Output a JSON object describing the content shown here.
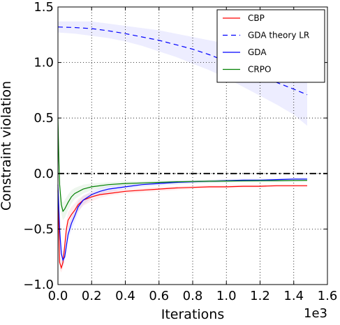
{
  "chart_data": {
    "type": "line",
    "title": "",
    "xlabel": "Iterations",
    "ylabel": "Constraint violation",
    "x_scale_label": "1e3",
    "xlim": [
      0.0,
      1.6
    ],
    "ylim": [
      -1.0,
      1.5
    ],
    "xticks": [
      "0.0",
      "0.2",
      "0.4",
      "0.6",
      "0.8",
      "1.0",
      "1.2",
      "1.4",
      "1.6"
    ],
    "yticks": [
      "1.5",
      "1.0",
      "0.5",
      "0.0",
      "−0.5",
      "−1.0"
    ],
    "grid": true,
    "legend_position": "top-right",
    "reference_line": {
      "y": 0.0,
      "style": "dash-dot",
      "color": "#000000"
    },
    "series": [
      {
        "name": "CBP",
        "color": "#ff0000",
        "dash": "solid",
        "x": [
          0.0,
          0.01,
          0.02,
          0.03,
          0.04,
          0.05,
          0.06,
          0.08,
          0.1,
          0.12,
          0.15,
          0.2,
          0.25,
          0.3,
          0.4,
          0.5,
          0.6,
          0.7,
          0.8,
          0.9,
          1.0,
          1.1,
          1.2,
          1.3,
          1.4,
          1.48
        ],
        "values": [
          -0.15,
          -0.8,
          -0.85,
          -0.8,
          -0.65,
          -0.5,
          -0.42,
          -0.37,
          -0.33,
          -0.28,
          -0.24,
          -0.21,
          -0.19,
          -0.18,
          -0.16,
          -0.15,
          -0.14,
          -0.13,
          -0.125,
          -0.12,
          -0.12,
          -0.115,
          -0.115,
          -0.11,
          -0.11,
          -0.11
        ],
        "band_lower": [
          -0.2,
          -0.87,
          -0.89,
          -0.85,
          -0.72,
          -0.58,
          -0.5,
          -0.45,
          -0.4,
          -0.34,
          -0.29,
          -0.25,
          -0.22,
          -0.2,
          -0.18,
          -0.17,
          -0.16,
          -0.15,
          -0.14,
          -0.135,
          -0.13,
          -0.125,
          -0.125,
          -0.12,
          -0.12,
          -0.12
        ],
        "band_upper": [
          -0.1,
          -0.72,
          -0.8,
          -0.74,
          -0.58,
          -0.43,
          -0.35,
          -0.3,
          -0.27,
          -0.23,
          -0.2,
          -0.17,
          -0.16,
          -0.15,
          -0.14,
          -0.13,
          -0.12,
          -0.115,
          -0.11,
          -0.105,
          -0.105,
          -0.1,
          -0.1,
          -0.1,
          -0.1,
          -0.1
        ]
      },
      {
        "name": "GDA theory LR",
        "color": "#0000ff",
        "dash": "dashed",
        "x": [
          0.0,
          0.1,
          0.2,
          0.3,
          0.4,
          0.5,
          0.6,
          0.7,
          0.8,
          0.9,
          1.0,
          1.1,
          1.2,
          1.3,
          1.4,
          1.48
        ],
        "values": [
          1.32,
          1.315,
          1.305,
          1.285,
          1.26,
          1.23,
          1.2,
          1.16,
          1.12,
          1.07,
          1.01,
          0.95,
          0.89,
          0.82,
          0.76,
          0.71
        ],
        "band_lower": [
          1.27,
          1.26,
          1.24,
          1.22,
          1.19,
          1.15,
          1.1,
          1.05,
          0.99,
          0.93,
          0.86,
          0.78,
          0.7,
          0.62,
          0.53,
          0.43
        ],
        "band_upper": [
          1.37,
          1.37,
          1.37,
          1.35,
          1.33,
          1.31,
          1.29,
          1.26,
          1.23,
          1.2,
          1.17,
          1.13,
          1.08,
          1.03,
          0.99,
          0.95
        ]
      },
      {
        "name": "GDA",
        "color": "#0000ff",
        "dash": "solid",
        "x": [
          0.0,
          0.01,
          0.02,
          0.03,
          0.04,
          0.05,
          0.06,
          0.08,
          0.1,
          0.12,
          0.15,
          0.2,
          0.25,
          0.3,
          0.4,
          0.5,
          0.6,
          0.7,
          0.8,
          0.9,
          1.0,
          1.1,
          1.2,
          1.3,
          1.4,
          1.48
        ],
        "values": [
          -0.1,
          -0.5,
          -0.72,
          -0.78,
          -0.75,
          -0.65,
          -0.55,
          -0.45,
          -0.38,
          -0.3,
          -0.24,
          -0.19,
          -0.16,
          -0.14,
          -0.12,
          -0.1,
          -0.09,
          -0.08,
          -0.075,
          -0.07,
          -0.065,
          -0.06,
          -0.06,
          -0.055,
          -0.05,
          -0.05
        ],
        "band_lower": [
          -0.15,
          -0.6,
          -0.8,
          -0.84,
          -0.8,
          -0.71,
          -0.61,
          -0.51,
          -0.44,
          -0.35,
          -0.28,
          -0.22,
          -0.19,
          -0.17,
          -0.14,
          -0.12,
          -0.11,
          -0.1,
          -0.09,
          -0.085,
          -0.08,
          -0.075,
          -0.07,
          -0.07,
          -0.065,
          -0.065
        ],
        "band_upper": [
          -0.05,
          -0.4,
          -0.62,
          -0.7,
          -0.68,
          -0.58,
          -0.48,
          -0.39,
          -0.32,
          -0.25,
          -0.2,
          -0.16,
          -0.13,
          -0.11,
          -0.1,
          -0.085,
          -0.075,
          -0.065,
          -0.06,
          -0.055,
          -0.05,
          -0.045,
          -0.045,
          -0.04,
          -0.035,
          -0.035
        ]
      },
      {
        "name": "CRPO",
        "color": "#008000",
        "dash": "solid",
        "x": [
          0.0,
          0.005,
          0.01,
          0.02,
          0.03,
          0.04,
          0.06,
          0.08,
          0.1,
          0.15,
          0.2,
          0.3,
          0.4,
          0.5,
          0.6,
          0.7,
          0.8,
          0.9,
          1.0,
          1.1,
          1.2,
          1.3,
          1.4,
          1.48
        ],
        "values": [
          0.5,
          0.15,
          -0.1,
          -0.28,
          -0.34,
          -0.32,
          -0.26,
          -0.21,
          -0.18,
          -0.14,
          -0.12,
          -0.1,
          -0.09,
          -0.085,
          -0.08,
          -0.075,
          -0.072,
          -0.07,
          -0.068,
          -0.066,
          -0.065,
          -0.064,
          -0.063,
          -0.062
        ],
        "band_lower": [
          0.45,
          0.05,
          -0.2,
          -0.36,
          -0.42,
          -0.4,
          -0.33,
          -0.27,
          -0.23,
          -0.18,
          -0.15,
          -0.12,
          -0.11,
          -0.1,
          -0.095,
          -0.09,
          -0.085,
          -0.082,
          -0.08,
          -0.078,
          -0.076,
          -0.075,
          -0.074,
          -0.073
        ],
        "band_upper": [
          0.55,
          0.25,
          0.0,
          -0.2,
          -0.26,
          -0.24,
          -0.19,
          -0.15,
          -0.13,
          -0.1,
          -0.09,
          -0.08,
          -0.07,
          -0.07,
          -0.065,
          -0.06,
          -0.058,
          -0.056,
          -0.055,
          -0.054,
          -0.053,
          -0.052,
          -0.051,
          -0.05
        ]
      }
    ]
  }
}
